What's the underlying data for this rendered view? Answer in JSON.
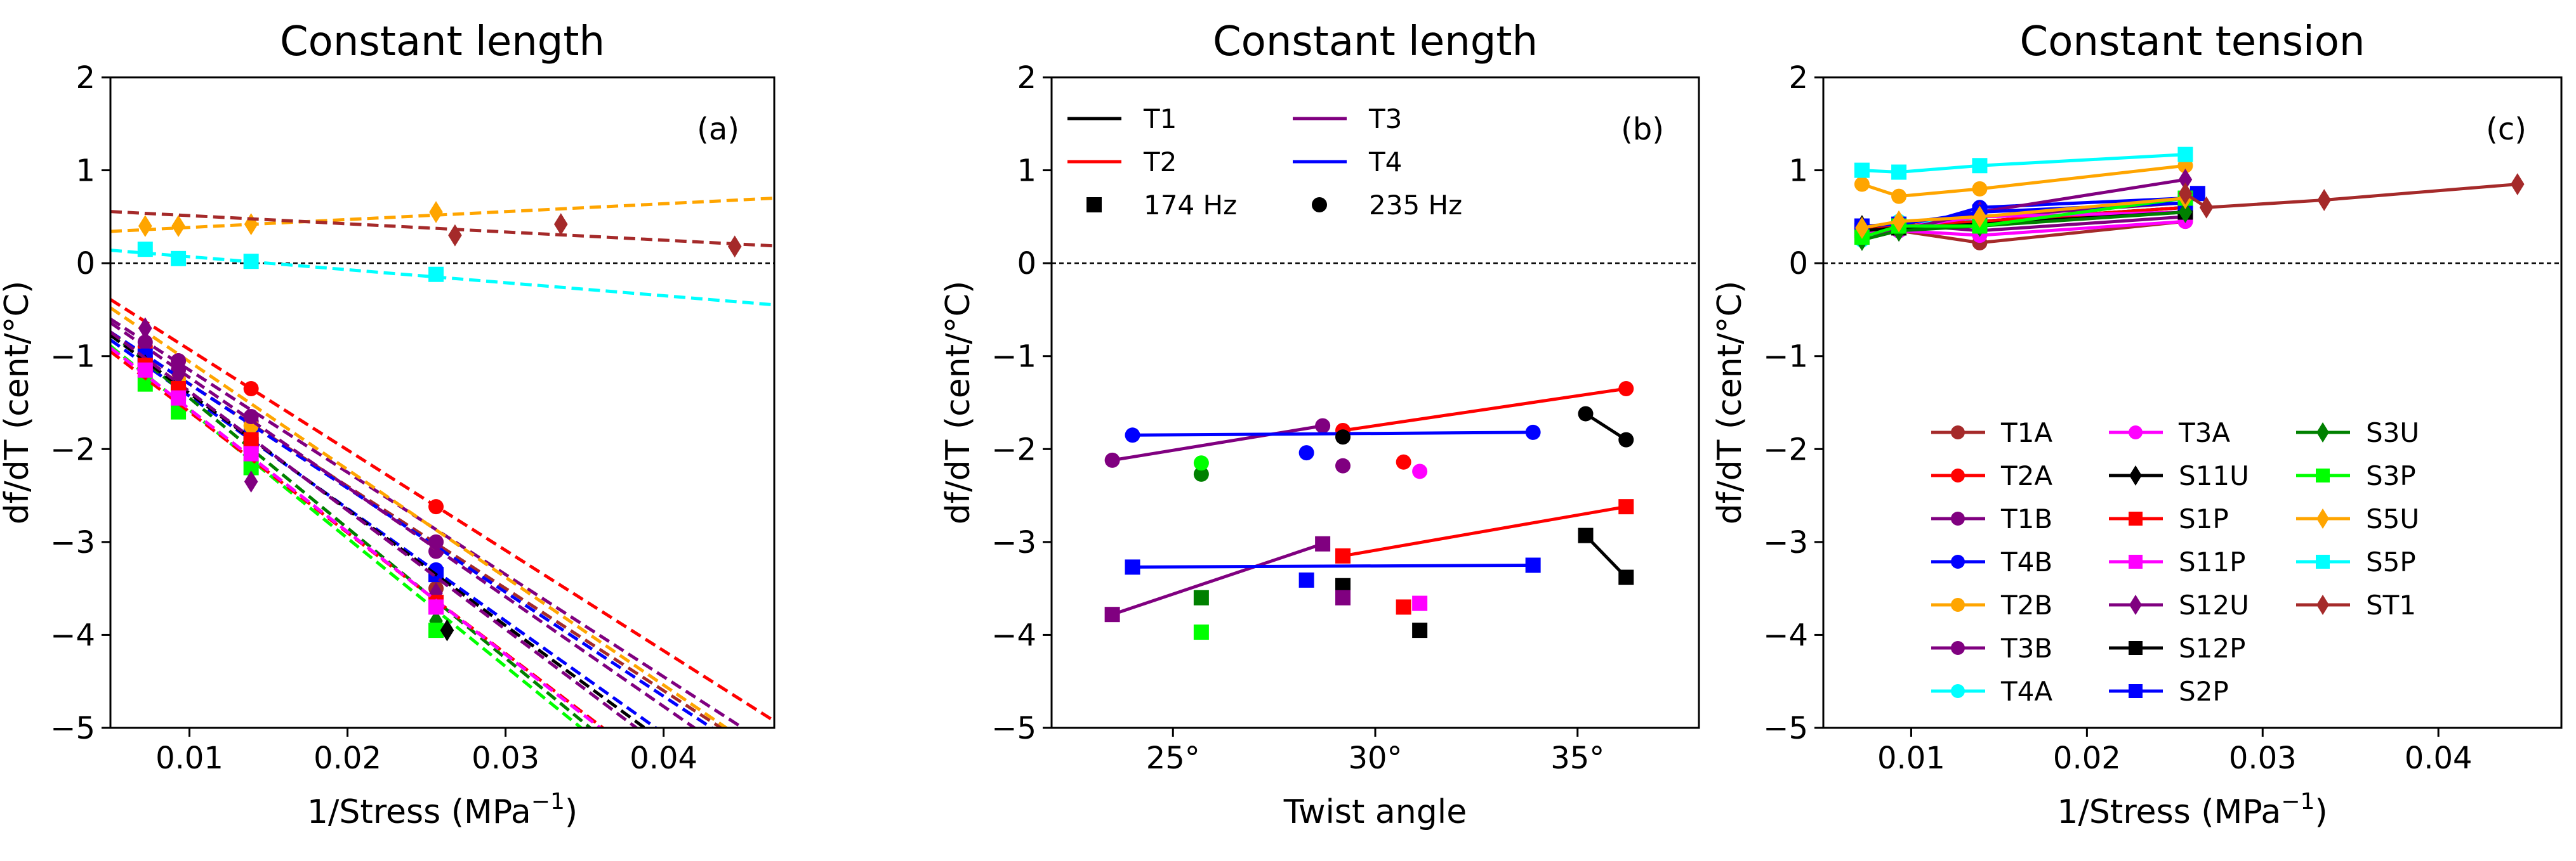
{
  "chart_data": [
    {
      "type": "scatter",
      "panel": "a",
      "title": "Constant length",
      "panel_label": "(a)",
      "xlabel": "1/Stress (MPa",
      "xlabel_sup": "−1",
      "xlabel_end": ")",
      "ylabel": "df/dT (cent/°C)",
      "xlim": [
        0.005,
        0.047
      ],
      "ylim": [
        -5,
        2
      ],
      "xticks": [
        0.01,
        0.02,
        0.03,
        0.04
      ],
      "xtick_labels": [
        "0.01",
        "0.02",
        "0.03",
        "0.04"
      ],
      "yticks": [
        -5,
        -4,
        -3,
        -2,
        -1,
        0,
        1,
        2
      ],
      "ytick_labels": [
        "−5",
        "−4",
        "−3",
        "−2",
        "−1",
        "0",
        "1",
        "2"
      ],
      "reference_line_y": 0,
      "series": [
        {
          "name": "T1A",
          "color": "#a52a2a",
          "marker": "circle",
          "x": [
            0.0072,
            0.0093,
            0.0139,
            0.0256
          ],
          "y": [
            -1.1,
            -1.3,
            -1.9,
            -3.5
          ],
          "fit": [
            -0.2,
            -110
          ]
        },
        {
          "name": "T2A",
          "color": "#ff0000",
          "marker": "circle",
          "x": [
            0.0072,
            0.0093,
            0.0139,
            0.0256
          ],
          "y": [
            -0.9,
            -1.05,
            -1.35,
            -2.62
          ],
          "fit": [
            0.15,
            -108
          ]
        },
        {
          "name": "T1B",
          "color": "#800080",
          "marker": "circle",
          "x": [
            0.0072,
            0.0093,
            0.0139,
            0.0256
          ],
          "y": [
            -1.0,
            -1.15,
            -1.7,
            -3.1
          ],
          "fit": [
            -0.05,
            -110
          ]
        },
        {
          "name": "T4B",
          "color": "#0000ff",
          "marker": "circle",
          "x": [
            0.0072,
            0.0093,
            0.0139,
            0.0256
          ],
          "y": [
            -1.05,
            -1.3,
            -1.8,
            -3.3
          ],
          "fit": [
            -0.18,
            -112
          ]
        },
        {
          "name": "T2B",
          "color": "#ffa500",
          "marker": "circle",
          "x": [
            0.0072,
            0.0093,
            0.0139,
            0.0256
          ],
          "y": [
            -1.05,
            -1.25,
            -1.75,
            -3.0
          ],
          "fit": [
            0.1,
            -116
          ]
        },
        {
          "name": "T3B",
          "color": "#800080",
          "marker": "circle",
          "x": [
            0.0072,
            0.0093,
            0.0139,
            0.0256
          ],
          "y": [
            -0.85,
            -1.05,
            -1.65,
            -3.0
          ],
          "fit": [
            -0.05,
            -118
          ]
        },
        {
          "name": "S2P",
          "color": "#0000ff",
          "marker": "square",
          "x": [
            0.0072,
            0.0093,
            0.0139,
            0.0256
          ],
          "y": [
            -1.0,
            -1.4,
            -1.95,
            -3.35
          ],
          "fit": [
            -0.22,
            -121
          ]
        },
        {
          "name": "S3U",
          "color": "#008000",
          "marker": "diamond",
          "x": [
            0.0072,
            0.0093,
            0.0139,
            0.0256
          ],
          "y": [
            -1.25,
            -1.45,
            -2.15,
            -3.85
          ],
          "fit": [
            -0.05,
            -140
          ]
        },
        {
          "name": "S3P",
          "color": "#00ff00",
          "marker": "square",
          "x": [
            0.0072,
            0.0093,
            0.0139,
            0.0256
          ],
          "y": [
            -1.3,
            -1.6,
            -2.2,
            -3.95
          ],
          "fit": [
            -0.2,
            -138
          ]
        },
        {
          "name": "S11U",
          "color": "#000000",
          "marker": "diamond",
          "x": [
            0.0072,
            0.0093,
            0.0139,
            0.0263
          ],
          "y": [
            -1.1,
            -1.4,
            -1.95,
            -3.95
          ],
          "fit": [
            -0.15,
            -125
          ]
        },
        {
          "name": "S12U",
          "color": "#800080",
          "marker": "diamond",
          "x": [
            0.0072,
            0.0093,
            0.0139,
            0.0256
          ],
          "y": [
            -0.7,
            -1.2,
            -2.35,
            -3.55
          ],
          "fit": [
            -0.1,
            -128
          ]
        },
        {
          "name": "S1P",
          "color": "#ff0000",
          "marker": "square",
          "x": [
            0.0072,
            0.0093,
            0.0139,
            0.0256
          ],
          "y": [
            -1.1,
            -1.35,
            -1.9,
            -3.65
          ],
          "fit": [
            -0.3,
            -130
          ]
        },
        {
          "name": "S11P",
          "color": "#ff00ff",
          "marker": "square",
          "x": [
            0.0072,
            0.0093,
            0.0139,
            0.0256
          ],
          "y": [
            -1.15,
            -1.45,
            -2.05,
            -3.7
          ],
          "fit": [
            -0.25,
            -132
          ]
        },
        {
          "name": "S5U",
          "color": "#ffa500",
          "marker": "diamond",
          "x": [
            0.0072,
            0.0093,
            0.0139,
            0.0256
          ],
          "y": [
            0.4,
            0.4,
            0.42,
            0.55
          ],
          "fit": [
            0.3,
            8.5
          ]
        },
        {
          "name": "S5P",
          "color": "#00ffff",
          "marker": "square",
          "x": [
            0.0072,
            0.0093,
            0.0139,
            0.0256
          ],
          "y": [
            0.15,
            0.05,
            0.02,
            -0.12
          ],
          "fit": [
            0.21,
            -14
          ]
        },
        {
          "name": "ST1",
          "color": "#a52a2a",
          "marker": "diamond",
          "x": [
            0.0268,
            0.0335,
            0.0445
          ],
          "y": [
            0.3,
            0.42,
            0.18
          ],
          "fit": [
            0.6,
            -8.8
          ]
        }
      ]
    },
    {
      "type": "scatter",
      "panel": "b",
      "title": "Constant length",
      "panel_label": "(b)",
      "xlabel": "Twist angle",
      "ylabel": "df/dT (cent/°C)",
      "xlim": [
        22,
        38
      ],
      "ylim": [
        -5,
        2
      ],
      "xticks": [
        25,
        30,
        35
      ],
      "xtick_labels": [
        "25°",
        "30°",
        "35°"
      ],
      "yticks": [
        -5,
        -4,
        -3,
        -2,
        -1,
        0,
        1,
        2
      ],
      "ytick_labels": [
        "−5",
        "−4",
        "−3",
        "−2",
        "−1",
        "0",
        "1",
        "2"
      ],
      "reference_line_y": 0,
      "legend": [
        {
          "label": "T1",
          "color": "#000000",
          "kind": "line"
        },
        {
          "label": "T3",
          "color": "#800080",
          "kind": "line"
        },
        {
          "label": "T2",
          "color": "#ff0000",
          "kind": "line"
        },
        {
          "label": "T4",
          "color": "#0000ff",
          "kind": "line"
        },
        {
          "label": "174 Hz",
          "color": "#000000",
          "kind": "square"
        },
        {
          "label": "235 Hz",
          "color": "#000000",
          "kind": "circle"
        }
      ],
      "lines": [
        {
          "name": "T1 174 Hz",
          "color": "#000000",
          "marker": "square",
          "x": [
            35.2,
            36.2
          ],
          "y": [
            -2.93,
            -3.38
          ]
        },
        {
          "name": "T1 235 Hz",
          "color": "#000000",
          "marker": "circle",
          "x": [
            35.2,
            36.2
          ],
          "y": [
            -1.62,
            -1.9
          ]
        },
        {
          "name": "T2 174 Hz",
          "color": "#ff0000",
          "marker": "square",
          "x": [
            29.2,
            36.2
          ],
          "y": [
            -3.15,
            -2.62
          ]
        },
        {
          "name": "T2 235 Hz",
          "color": "#ff0000",
          "marker": "circle",
          "x": [
            29.2,
            36.2
          ],
          "y": [
            -1.8,
            -1.35
          ]
        },
        {
          "name": "T3 174 Hz",
          "color": "#800080",
          "marker": "square",
          "x": [
            23.5,
            28.7
          ],
          "y": [
            -3.78,
            -3.02
          ]
        },
        {
          "name": "T3 235 Hz",
          "color": "#800080",
          "marker": "circle",
          "x": [
            23.5,
            28.7
          ],
          "y": [
            -2.12,
            -1.75
          ]
        },
        {
          "name": "T4 174 Hz",
          "color": "#0000ff",
          "marker": "square",
          "x": [
            24.0,
            33.9
          ],
          "y": [
            -3.27,
            -3.25
          ]
        },
        {
          "name": "T4 235 Hz",
          "color": "#0000ff",
          "marker": "circle",
          "x": [
            24.0,
            33.9
          ],
          "y": [
            -1.85,
            -1.82
          ]
        }
      ],
      "points": [
        {
          "color": "#008000",
          "marker": "circle",
          "x": 25.7,
          "y": -2.27
        },
        {
          "color": "#00ff00",
          "marker": "circle",
          "x": 25.7,
          "y": -2.15
        },
        {
          "color": "#008000",
          "marker": "square",
          "x": 25.7,
          "y": -3.6
        },
        {
          "color": "#00ff00",
          "marker": "square",
          "x": 25.7,
          "y": -3.97
        },
        {
          "color": "#0000ff",
          "marker": "circle",
          "x": 28.3,
          "y": -2.04
        },
        {
          "color": "#0000ff",
          "marker": "square",
          "x": 28.3,
          "y": -3.41
        },
        {
          "color": "#000000",
          "marker": "circle",
          "x": 29.2,
          "y": -1.87
        },
        {
          "color": "#800080",
          "marker": "circle",
          "x": 29.2,
          "y": -2.18
        },
        {
          "color": "#000000",
          "marker": "square",
          "x": 29.2,
          "y": -3.47
        },
        {
          "color": "#800080",
          "marker": "square",
          "x": 29.2,
          "y": -3.6
        },
        {
          "color": "#ff0000",
          "marker": "circle",
          "x": 30.7,
          "y": -2.14
        },
        {
          "color": "#ff0000",
          "marker": "square",
          "x": 30.7,
          "y": -3.7
        },
        {
          "color": "#ff00ff",
          "marker": "circle",
          "x": 31.1,
          "y": -2.24
        },
        {
          "color": "#ff00ff",
          "marker": "square",
          "x": 31.1,
          "y": -3.66
        },
        {
          "color": "#000000",
          "marker": "square",
          "x": 31.1,
          "y": -3.95
        }
      ]
    },
    {
      "type": "line",
      "panel": "c",
      "title": "Constant tension",
      "panel_label": "(c)",
      "xlabel": "1/Stress (MPa",
      "xlabel_sup": "−1",
      "xlabel_end": ")",
      "ylabel": "df/dT (cent/°C)",
      "xlim": [
        0.005,
        0.047
      ],
      "ylim": [
        -5,
        2
      ],
      "xticks": [
        0.01,
        0.02,
        0.03,
        0.04
      ],
      "xtick_labels": [
        "0.01",
        "0.02",
        "0.03",
        "0.04"
      ],
      "yticks": [
        -5,
        -4,
        -3,
        -2,
        -1,
        0,
        1,
        2
      ],
      "ytick_labels": [
        "−5",
        "−4",
        "−3",
        "−2",
        "−1",
        "0",
        "1",
        "2"
      ],
      "reference_line_y": 0,
      "series": [
        {
          "name": "T1A",
          "color": "#a52a2a",
          "marker": "circle",
          "x": [
            0.0072,
            0.0093,
            0.0139,
            0.0256
          ],
          "y": [
            0.35,
            0.35,
            0.22,
            0.45
          ]
        },
        {
          "name": "T2A",
          "color": "#ff0000",
          "marker": "circle",
          "x": [
            0.0072,
            0.0093,
            0.0139,
            0.0256
          ],
          "y": [
            0.38,
            0.4,
            0.45,
            0.55
          ]
        },
        {
          "name": "T1B",
          "color": "#800080",
          "marker": "circle",
          "x": [
            0.0072,
            0.0093,
            0.0139,
            0.0256
          ],
          "y": [
            0.35,
            0.42,
            0.35,
            0.5
          ]
        },
        {
          "name": "T4B",
          "color": "#0000ff",
          "marker": "circle",
          "x": [
            0.0072,
            0.0093,
            0.0139,
            0.0256
          ],
          "y": [
            0.3,
            0.35,
            0.6,
            0.7
          ]
        },
        {
          "name": "T2B",
          "color": "#ffa500",
          "marker": "circle",
          "x": [
            0.0072,
            0.0093,
            0.0139,
            0.0256
          ],
          "y": [
            0.85,
            0.72,
            0.8,
            1.05
          ]
        },
        {
          "name": "T3B",
          "color": "#800080",
          "marker": "circle",
          "x": [
            0.0072,
            0.0093,
            0.0139,
            0.0256
          ],
          "y": [
            0.3,
            0.38,
            0.5,
            0.65
          ]
        },
        {
          "name": "T4A",
          "color": "#00ffff",
          "marker": "circle",
          "x": [
            0.0072,
            0.0093,
            0.0139,
            0.0256
          ],
          "y": [
            0.25,
            0.45,
            0.45,
            0.6
          ]
        },
        {
          "name": "T3A",
          "color": "#ff00ff",
          "marker": "circle",
          "x": [
            0.0072,
            0.0093,
            0.0139,
            0.0256
          ],
          "y": [
            0.32,
            0.35,
            0.3,
            0.45
          ]
        },
        {
          "name": "S11U",
          "color": "#000000",
          "marker": "diamond",
          "x": [
            0.0072,
            0.0093,
            0.0139,
            0.0256
          ],
          "y": [
            0.4,
            0.4,
            0.45,
            0.6
          ]
        },
        {
          "name": "S1P",
          "color": "#ff0000",
          "marker": "square",
          "x": [
            0.0072,
            0.0093,
            0.0139,
            0.0256
          ],
          "y": [
            0.35,
            0.4,
            0.45,
            0.6
          ]
        },
        {
          "name": "S11P",
          "color": "#ff00ff",
          "marker": "square",
          "x": [
            0.0072,
            0.0093,
            0.0139,
            0.0256
          ],
          "y": [
            0.3,
            0.38,
            0.5,
            0.55
          ]
        },
        {
          "name": "S12U",
          "color": "#800080",
          "marker": "diamond",
          "x": [
            0.0072,
            0.0093,
            0.0139,
            0.0256
          ],
          "y": [
            0.3,
            0.35,
            0.55,
            0.9
          ]
        },
        {
          "name": "S12P",
          "color": "#000000",
          "marker": "square",
          "x": [
            0.0072,
            0.0093,
            0.0139,
            0.0256
          ],
          "y": [
            0.35,
            0.38,
            0.42,
            0.55
          ]
        },
        {
          "name": "S2P",
          "color": "#0000ff",
          "marker": "square",
          "x": [
            0.0072,
            0.0093,
            0.0139,
            0.0256,
            0.0263
          ],
          "y": [
            0.4,
            0.42,
            0.55,
            0.65,
            0.75
          ]
        },
        {
          "name": "S3U",
          "color": "#008000",
          "marker": "diamond",
          "x": [
            0.0072,
            0.0093,
            0.0139,
            0.0256
          ],
          "y": [
            0.25,
            0.35,
            0.4,
            0.55
          ]
        },
        {
          "name": "S3P",
          "color": "#00ff00",
          "marker": "square",
          "x": [
            0.0072,
            0.0093,
            0.0139,
            0.0256
          ],
          "y": [
            0.28,
            0.4,
            0.4,
            0.7
          ]
        },
        {
          "name": "S5U",
          "color": "#ffa500",
          "marker": "diamond",
          "x": [
            0.0072,
            0.0093,
            0.0139,
            0.0256
          ],
          "y": [
            0.38,
            0.45,
            0.5,
            0.7
          ]
        },
        {
          "name": "S5P",
          "color": "#00ffff",
          "marker": "square",
          "x": [
            0.0072,
            0.0093,
            0.0139,
            0.0256
          ],
          "y": [
            1.0,
            0.98,
            1.05,
            1.17
          ]
        },
        {
          "name": "ST1",
          "color": "#a52a2a",
          "marker": "diamond",
          "x": [
            0.0256,
            0.0268,
            0.0335,
            0.0445
          ],
          "y": [
            0.75,
            0.6,
            0.68,
            0.85
          ]
        }
      ],
      "legend_order": [
        "T1A",
        "T2A",
        "T1B",
        "T4B",
        "T2B",
        "T3B",
        "T4A",
        "T3A",
        "S11U",
        "S1P",
        "S11P",
        "S12U",
        "S12P",
        "S2P",
        "S3U",
        "S3P",
        "S5U",
        "S5P",
        "ST1"
      ]
    }
  ]
}
